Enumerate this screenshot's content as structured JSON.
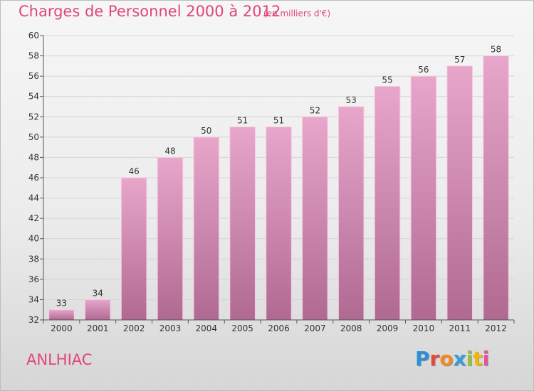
{
  "title": "Charges de Personnel 2000 à 2012",
  "unit_note": "(en milliers d'€)",
  "commune": "ANLHIAC",
  "logo": {
    "letters": [
      "P",
      "r",
      "o",
      "x",
      "i",
      "t",
      "i"
    ],
    "colors": [
      "#2f8fd6",
      "#e8473b",
      "#f08a24",
      "#3a9bd8",
      "#8cc63f",
      "#f2b705",
      "#e94f9b"
    ]
  },
  "colors": {
    "title": "#e0457a",
    "bar_top": "#e8a6cb",
    "bar_bottom": "#b06a92",
    "axis_text": "#333333"
  },
  "chart_data": {
    "type": "bar",
    "title": "Charges de Personnel 2000 à 2012",
    "subtitle": "(en milliers d'€)",
    "categories": [
      "2000",
      "2001",
      "2002",
      "2003",
      "2004",
      "2005",
      "2006",
      "2007",
      "2008",
      "2009",
      "2010",
      "2011",
      "2012"
    ],
    "values": [
      33,
      34,
      46,
      48,
      50,
      51,
      51,
      52,
      53,
      55,
      56,
      57,
      58
    ],
    "data_labels": [
      "33",
      "34",
      "46",
      "48",
      "50",
      "51",
      "51",
      "52",
      "53",
      "55",
      "56",
      "57",
      "58"
    ],
    "ylim": [
      32,
      60
    ],
    "yticks": [
      "32",
      "34",
      "36",
      "38",
      "40",
      "42",
      "44",
      "46",
      "48",
      "50",
      "52",
      "54",
      "56",
      "58",
      "60"
    ],
    "grid": true,
    "xlabel": "",
    "ylabel": ""
  }
}
